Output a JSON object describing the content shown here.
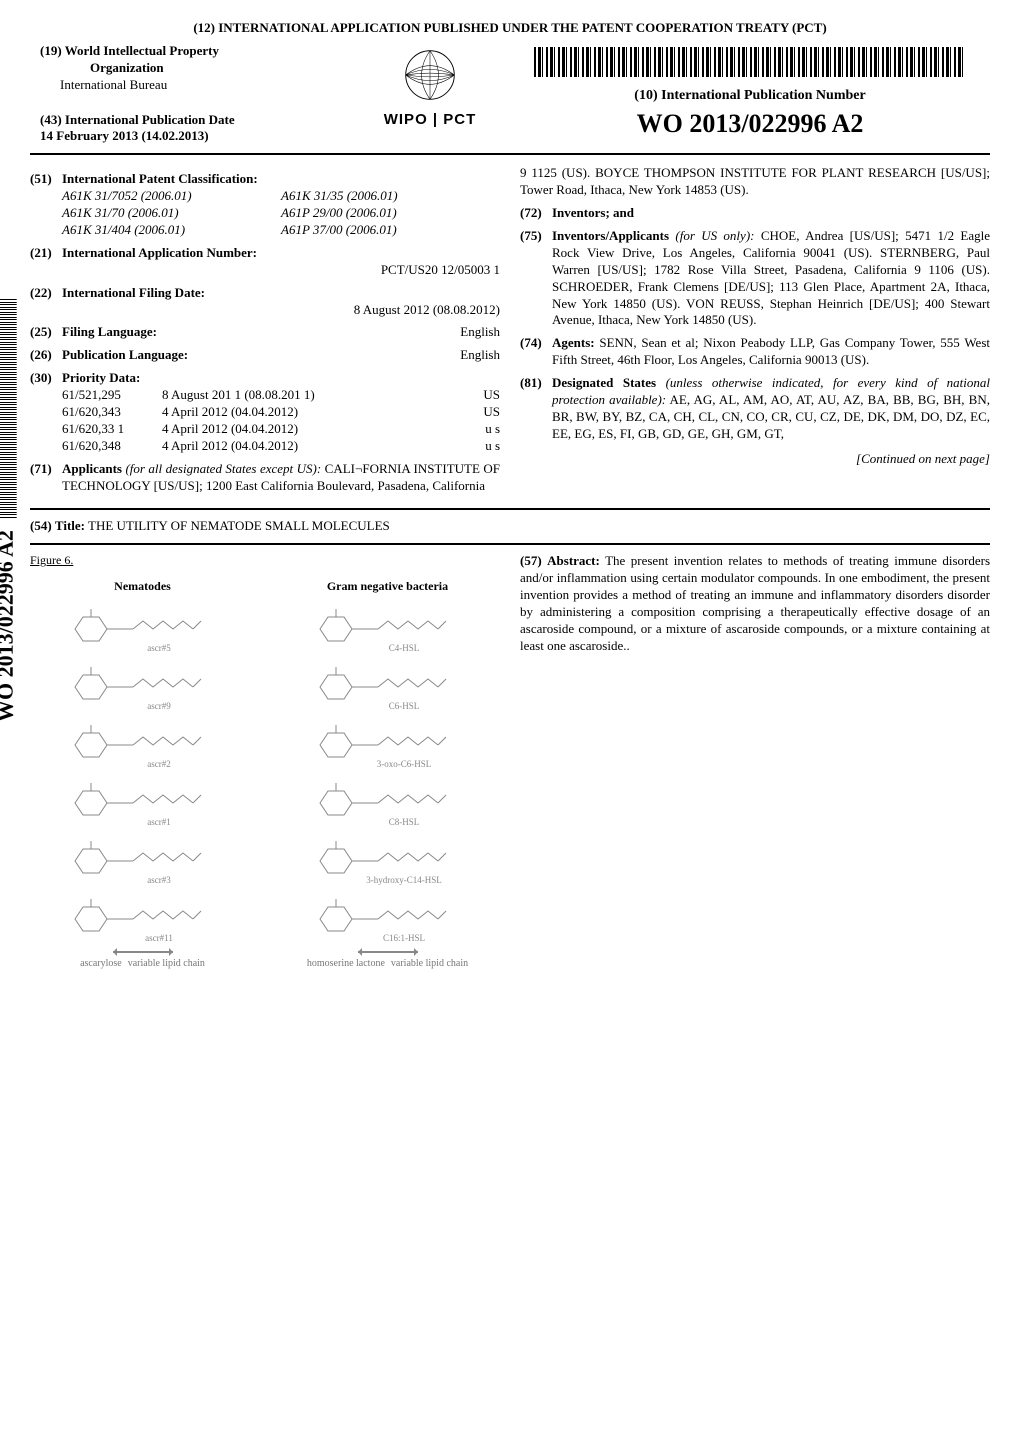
{
  "header": {
    "top_title": "(12) INTERNATIONAL APPLICATION PUBLISHED UNDER THE PATENT COOPERATION TREATY (PCT)",
    "org_num": "(19)",
    "org_line1": "World Intellectual Property",
    "org_line2": "Organization",
    "bureau": "International Bureau",
    "pubdate_num": "(43)",
    "pubdate_label": "International Publication Date",
    "pubdate_value": "14 February 2013 (14.02.2013)",
    "wipo_text": "WIPO | PCT",
    "pub_num_num": "(10)",
    "pub_num_label": "International Publication Number",
    "pub_num_value": "WO 2013/022996 A2"
  },
  "left": {
    "f51_num": "(51)",
    "f51_label": "International Patent Classification:",
    "ipc": [
      [
        "A61K 31/7052 (2006.01)",
        "A61K 31/35 (2006.01)"
      ],
      [
        "A61K 31/70 (2006.01)",
        "A61P 29/00 (2006.01)"
      ],
      [
        "A61K 31/404 (2006.01)",
        "A61P 37/00 (2006.01)"
      ]
    ],
    "f21_num": "(21)",
    "f21_label": "International Application Number:",
    "f21_value": "PCT/US20 12/05003 1",
    "f22_num": "(22)",
    "f22_label": "International Filing Date:",
    "f22_value": "8 August 2012 (08.08.2012)",
    "f25_num": "(25)",
    "f25_label": "Filing Language:",
    "f25_value": "English",
    "f26_num": "(26)",
    "f26_label": "Publication Language:",
    "f26_value": "English",
    "f30_num": "(30)",
    "f30_label": "Priority Data:",
    "priority": [
      {
        "n": "61/521,295",
        "d": "8 August 201 1 (08.08.201 1)",
        "c": "US"
      },
      {
        "n": "61/620,343",
        "d": "4 April 2012 (04.04.2012)",
        "c": "US"
      },
      {
        "n": "61/620,33 1",
        "d": "4 April 2012 (04.04.2012)",
        "c": "u s"
      },
      {
        "n": "61/620,348",
        "d": "4 April 2012 (04.04.2012)",
        "c": "u s"
      }
    ],
    "f71_num": "(71)",
    "f71_label": "Applicants",
    "f71_qual": "(for all designated States except US):",
    "f71_body": "CALI¬FORNIA INSTITUTE OF TECHNOLOGY [US/US]; 1200 East California Boulevard, Pasadena, California"
  },
  "right": {
    "cont_71": "9 1125 (US). BOYCE THOMPSON INSTITUTE FOR PLANT RESEARCH [US/US]; Tower Road, Ithaca, New York 14853 (US).",
    "f72_num": "(72)",
    "f72_label": "Inventors; and",
    "f75_num": "(75)",
    "f75_label": "Inventors/Applicants",
    "f75_qual": "(for US only):",
    "f75_body": "CHOE, Andrea [US/US]; 5471 1/2 Eagle Rock View Drive, Los Angeles, California 90041 (US). STERNBERG, Paul Warren [US/US]; 1782 Rose Villa Street, Pasadena, California 9 1106 (US). SCHROEDER, Frank Clemens [DE/US]; 113 Glen Place, Apartment 2A, Ithaca, New York 14850 (US). VON REUSS, Stephan Heinrich [DE/US]; 400 Stewart Avenue, Ithaca, New York 14850 (US).",
    "f74_num": "(74)",
    "f74_label": "Agents:",
    "f74_body": "SENN, Sean et al; Nixon Peabody LLP, Gas Company Tower, 555 West Fifth Street, 46th Floor, Los Angeles, California 90013 (US).",
    "f81_num": "(81)",
    "f81_label": "Designated States",
    "f81_qual": "(unless otherwise indicated, for every kind of national protection available):",
    "f81_body": "AE, AG, AL, AM, AO, AT, AU, AZ, BA, BB, BG, BH, BN, BR, BW, BY, BZ, CA, CH, CL, CN, CO, CR, CU, CZ, DE, DK, DM, DO, DZ, EC, EE, EG, ES, FI, GB, GD, GE, GH, GM, GT,",
    "continued": "[Continued on next page]"
  },
  "title": {
    "num": "(54)",
    "label": "Title:",
    "text": "THE UTILITY OF NEMATODE SMALL MOLECULES"
  },
  "figure": {
    "label": "Figure 6.",
    "col1_title": "Nematodes",
    "col2_title": "Gram negative bacteria",
    "nematode_labels": [
      "ascr#5",
      "ascr#9",
      "ascr#2",
      "ascr#1",
      "ascr#3",
      "ascr#11"
    ],
    "bacteria_labels": [
      "C4-HSL",
      "C6-HSL",
      "3-oxo-C6-HSL",
      "C8-HSL",
      "3-hydroxy-C14-HSL",
      "C16:1-HSL"
    ],
    "foot_left_a": "ascarylose",
    "foot_left_b": "variable lipid chain",
    "foot_right_a": "homoserine lactone",
    "foot_right_b": "variable lipid chain",
    "stroke_color": "#888888"
  },
  "abstract": {
    "num": "(57)",
    "label": "Abstract:",
    "text": "The present invention relates to methods of treating immune disorders and/or inflammation using certain modulator compounds. In one embodiment, the present invention provides a method of treating an immune and inflammatory disorders disorder by administering a composition comprising a therapeutically effective dosage of an ascaroside compound, or a mixture of ascaroside compounds, or a mixture containing at least one ascaroside.."
  },
  "spine": {
    "text": "WO 2013/022996 A2"
  }
}
